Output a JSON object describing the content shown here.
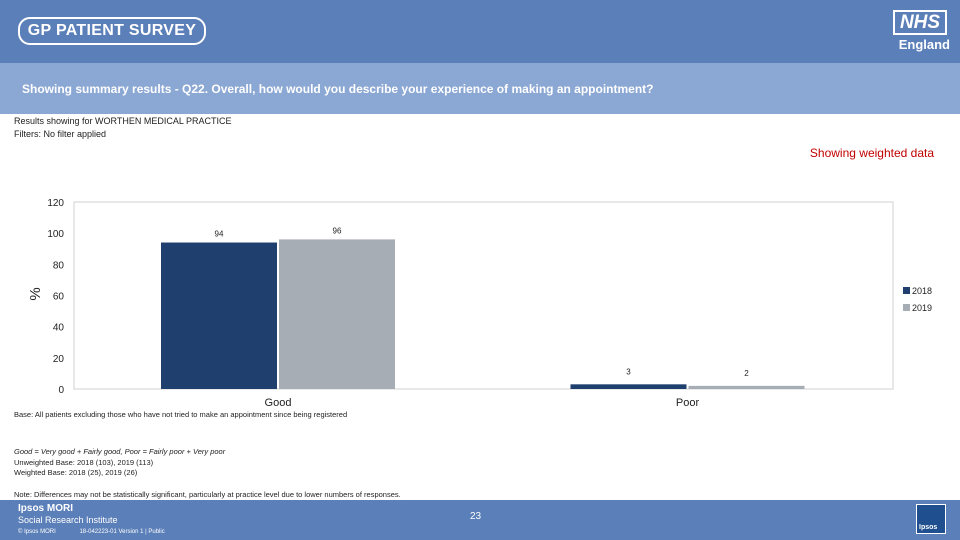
{
  "header": {
    "survey_logo": "GP PATIENT SURVEY",
    "nhs_logo": "NHS",
    "nhs_region": "England"
  },
  "question": "Showing summary results - Q22.  Overall, how would you describe your experience of making an appointment?",
  "results_for": "Results showing for WORTHEN MEDICAL PRACTICE",
  "filters": "Filters: No filter applied",
  "weighted_note": "Showing weighted data",
  "chart_data": {
    "type": "bar",
    "categories": [
      "Good",
      "Poor"
    ],
    "series": [
      {
        "name": "2018",
        "values": [
          94,
          3
        ],
        "color": "#1f3f6e"
      },
      {
        "name": "2019",
        "values": [
          96,
          2
        ],
        "color": "#a6adb5"
      }
    ],
    "ylabel": "%",
    "ylim": [
      0,
      120
    ],
    "yticks": [
      0,
      20,
      40,
      60,
      80,
      100,
      120
    ],
    "legend": "right"
  },
  "base_note": "Base: All patients excluding those who have not tried to make an appointment since being registered",
  "definitions": [
    "Good = Very good + Fairly good, Poor = Fairly poor + Very poor",
    "Unweighted Base: 2018 (103), 2019 (113)",
    "Weighted Base: 2018 (25), 2019 (26)"
  ],
  "diff_note": "Note: Differences may not be statistically significant, particularly at practice level due to lower numbers of responses.",
  "footer": {
    "company": "Ipsos MORI",
    "division": "Social Research Institute",
    "copyright": "© Ipsos MORI",
    "job_ref": "18-042223-01 Version 1 | Public",
    "page_number": "23",
    "logo_text": "Ipsos"
  }
}
